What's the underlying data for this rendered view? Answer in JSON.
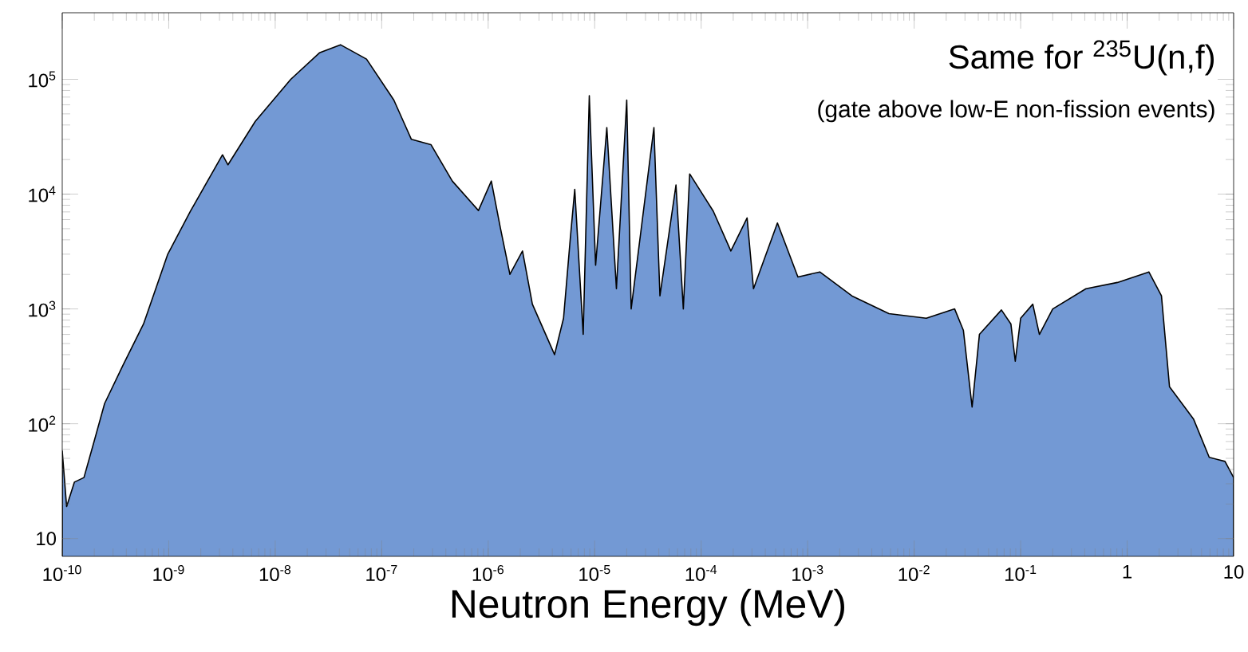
{
  "chart_data": {
    "type": "area",
    "title": "Same for $^{235}$U(n,f)",
    "subtitle": "(gate above low-E non-fission events)",
    "xlabel": "Neutron Energy (MeV)",
    "log": "xy",
    "xlim": [
      1e-10,
      10
    ],
    "ylim": [
      7,
      380000
    ],
    "xticks": [
      {
        "value": 1e-10,
        "label": "10$^{-10}$"
      },
      {
        "value": 1e-09,
        "label": "10$^{-9}$"
      },
      {
        "value": 1e-08,
        "label": "10$^{-8}$"
      },
      {
        "value": 1e-07,
        "label": "10$^{-7}$"
      },
      {
        "value": 1e-06,
        "label": "10$^{-6}$"
      },
      {
        "value": 1e-05,
        "label": "10$^{-5}$"
      },
      {
        "value": 0.0001,
        "label": "10$^{-4}$"
      },
      {
        "value": 0.001,
        "label": "10$^{-3}$"
      },
      {
        "value": 0.01,
        "label": "10$^{-2}$"
      },
      {
        "value": 0.1,
        "label": "10$^{-1}$"
      },
      1,
      10
    ],
    "yticks": [
      10,
      {
        "value": 100,
        "label": "10$^{2}$"
      },
      {
        "value": 1000,
        "label": "10$^{3}$"
      },
      {
        "value": 10000,
        "label": "10$^{4}$"
      },
      {
        "value": 100000,
        "label": "10$^{5}$"
      }
    ],
    "x": [
      1e-10,
      1.1e-10,
      1.3e-10,
      1.6e-10,
      2e-10,
      2.5e-10,
      3.7e-10,
      5.8e-10,
      9.8e-10,
      1.6e-09,
      3.2e-09,
      3.6e-09,
      6.5e-09,
      1.4e-08,
      2.6e-08,
      4.1e-08,
      7.2e-08,
      1.3e-07,
      1.9e-07,
      2.9e-07,
      4.6e-07,
      8.1e-07,
      1.07e-06,
      1.3e-06,
      1.6e-06,
      2.1e-06,
      2.6e-06,
      4.2e-06,
      5.1e-06,
      5.9e-06,
      6.5e-06,
      7.8e-06,
      8.9e-06,
      1.02e-05,
      1.3e-05,
      1.6e-05,
      2e-05,
      2.2e-05,
      3.6e-05,
      4.1e-05,
      5.8e-05,
      6.8e-05,
      7.8e-05,
      0.00013,
      0.00019,
      0.00027,
      0.00031,
      0.00052,
      0.00081,
      0.0013,
      0.0026,
      0.0058,
      0.013,
      0.024,
      0.029,
      0.035,
      0.041,
      0.066,
      0.081,
      0.089,
      0.1,
      0.13,
      0.15,
      0.2,
      0.41,
      0.81,
      1.6,
      2.1,
      2.5,
      4.2,
      5.9,
      8.3,
      10
    ],
    "series": [
      {
        "color": "#7399d4",
        "values": [
          58,
          19,
          31,
          34,
          71,
          150,
          320,
          740,
          3000,
          7100,
          22000,
          18000,
          43000,
          100000,
          170000,
          200000,
          150000,
          66000,
          30000,
          27000,
          13000,
          7200,
          13000,
          5100,
          2000,
          3200,
          1100,
          400,
          830,
          4100,
          11000,
          600,
          72000,
          2400,
          38000,
          1500,
          66000,
          1000,
          38000,
          1300,
          12000,
          1000,
          15000,
          7100,
          3200,
          6200,
          1500,
          5600,
          1900,
          2100,
          1300,
          910,
          830,
          1000,
          650,
          140,
          600,
          980,
          740,
          350,
          830,
          1100,
          600,
          1000,
          1500,
          1700,
          2100,
          1300,
          210,
          110,
          51,
          47,
          34
        ]
      }
    ]
  }
}
